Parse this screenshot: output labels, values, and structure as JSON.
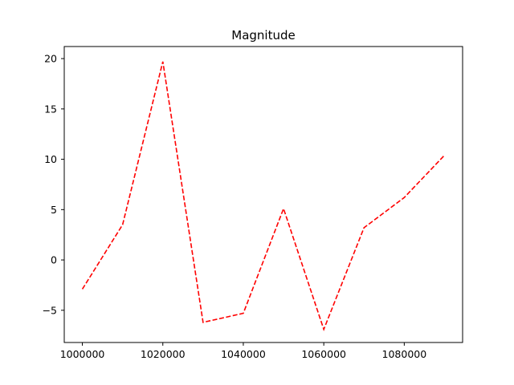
{
  "chart_data": {
    "type": "line",
    "title": "Magnitude",
    "xlabel": "",
    "ylabel": "",
    "xlim": [
      995500,
      1094500
    ],
    "ylim": [
      -8.2,
      21.2
    ],
    "x_ticks": [
      1000000,
      1020000,
      1040000,
      1060000,
      1080000
    ],
    "y_ticks": [
      -5,
      0,
      5,
      10,
      15,
      20
    ],
    "grid": false,
    "legend": "none",
    "series": [
      {
        "color": "#ff0000",
        "line_style": "dashed",
        "x": [
          1000000,
          1010000,
          1020000,
          1030000,
          1040000,
          1050000,
          1060000,
          1070000,
          1080000,
          1090000
        ],
        "y": [
          -2.9,
          3.5,
          19.7,
          -6.2,
          -5.3,
          5.1,
          -6.9,
          3.2,
          6.2,
          10.4
        ]
      }
    ]
  }
}
